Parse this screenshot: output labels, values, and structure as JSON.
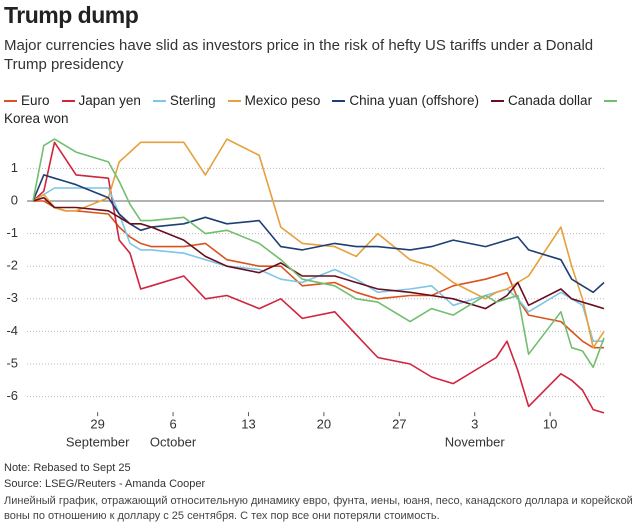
{
  "chart_data": {
    "type": "line",
    "title": "Trump dump",
    "subtitle": "Major currencies have slid as investors price in the risk of hefty US tariffs under a Donald Trump presidency",
    "note": "Note: Rebased to Sept 25",
    "source": "Source: LSEG/Reuters - Amanda Cooper",
    "description": "Линейный график, отражающий относительную динамику евро, фунта, иены, юаня, песо, канадского доллара и корейской воны по отношению к доллару с 25 сентября. С тех пор все они потеряли стоимость.",
    "x": [
      "09-23",
      "09-24",
      "09-25",
      "09-26",
      "09-27",
      "09-30",
      "10-01",
      "10-02",
      "10-03",
      "10-04",
      "10-07",
      "10-09",
      "10-11",
      "10-14",
      "10-16",
      "10-18",
      "10-21",
      "10-23",
      "10-25",
      "10-28",
      "10-30",
      "11-01",
      "11-04",
      "11-05",
      "11-06",
      "11-07",
      "11-08",
      "11-11",
      "11-12",
      "11-13",
      "11-14",
      "11-15"
    ],
    "xlim": [
      "09-23",
      "11-15"
    ],
    "xticks": [
      {
        "value": "09-29",
        "label": "29"
      },
      {
        "value": "10-06",
        "label": "6"
      },
      {
        "value": "10-13",
        "label": "13"
      },
      {
        "value": "10-20",
        "label": "20"
      },
      {
        "value": "10-27",
        "label": "27"
      },
      {
        "value": "11-03",
        "label": "3"
      },
      {
        "value": "11-10",
        "label": "10"
      }
    ],
    "x_month_labels": [
      {
        "value": "09-29",
        "label": "September"
      },
      {
        "value": "10-06",
        "label": "October"
      },
      {
        "value": "11-03",
        "label": "November"
      }
    ],
    "ylim": [
      -6.6,
      2.1
    ],
    "yticks": [
      -6,
      -5,
      -4,
      -3,
      -2,
      -1,
      0,
      1
    ],
    "grid": true,
    "series": [
      {
        "name": "Euro",
        "color": "#d9531e",
        "values": [
          0,
          0,
          -0.2,
          -0.3,
          -0.3,
          -0.4,
          -0.8,
          -1.1,
          -1.3,
          -1.4,
          -1.4,
          -1.3,
          -1.8,
          -2.0,
          -2.0,
          -2.6,
          -2.5,
          -2.8,
          -3.0,
          -2.9,
          -2.9,
          -2.6,
          -2.4,
          -2.3,
          -2.2,
          -3.0,
          -3.5,
          -3.7,
          -4.0,
          -4.3,
          -4.5,
          -4.5
        ]
      },
      {
        "name": "Japan yen",
        "color": "#d1243f",
        "values": [
          0,
          0.3,
          1.8,
          1.3,
          0.8,
          0.7,
          -1.2,
          -1.6,
          -2.7,
          -2.6,
          -2.3,
          -3.0,
          -2.9,
          -3.3,
          -3.0,
          -3.6,
          -3.4,
          -4.1,
          -4.8,
          -5.0,
          -5.4,
          -5.6,
          -5.0,
          -4.8,
          -4.3,
          -5.2,
          -6.3,
          -5.3,
          -5.5,
          -5.8,
          -6.4,
          -6.5
        ]
      },
      {
        "name": "Sterling",
        "color": "#7cc6e8",
        "values": [
          0,
          0.2,
          0.4,
          0.4,
          0.4,
          0.4,
          -0.4,
          -1.3,
          -1.5,
          -1.5,
          -1.6,
          -1.8,
          -2.0,
          -2.1,
          -2.4,
          -2.5,
          -2.1,
          -2.4,
          -2.8,
          -2.7,
          -2.6,
          -3.2,
          -2.9,
          -2.8,
          -2.7,
          -3.0,
          -3.4,
          -2.8,
          -3.0,
          -3.2,
          -4.3,
          -4.3
        ]
      },
      {
        "name": "Mexico peso",
        "color": "#e6a03c",
        "values": [
          0,
          0.2,
          -0.2,
          -0.3,
          -0.3,
          0.1,
          1.2,
          1.5,
          1.8,
          1.8,
          1.8,
          0.8,
          1.9,
          1.4,
          -0.8,
          -1.3,
          -1.4,
          -1.7,
          -1.0,
          -1.8,
          -2.0,
          -2.5,
          -3.0,
          -2.8,
          -2.7,
          -2.5,
          -2.3,
          -0.8,
          -2.0,
          -3.0,
          -4.5,
          -4.0
        ]
      },
      {
        "name": "China yuan (offshore)",
        "color": "#1d3f73",
        "values": [
          0,
          0.8,
          0.7,
          0.6,
          0.5,
          0.1,
          -0.4,
          -0.7,
          -0.9,
          -0.8,
          -0.7,
          -0.5,
          -0.7,
          -0.6,
          -1.4,
          -1.5,
          -1.3,
          -1.4,
          -1.4,
          -1.5,
          -1.4,
          -1.2,
          -1.4,
          -1.3,
          -1.2,
          -1.1,
          -1.5,
          -1.8,
          -2.4,
          -2.6,
          -2.8,
          -2.5
        ]
      },
      {
        "name": "Canada dollar",
        "color": "#6a0d1c",
        "values": [
          0,
          0.1,
          -0.2,
          -0.2,
          -0.2,
          -0.3,
          -0.5,
          -0.7,
          -0.7,
          -0.8,
          -1.2,
          -1.7,
          -2.0,
          -2.2,
          -1.9,
          -2.3,
          -2.3,
          -2.5,
          -2.7,
          -2.8,
          -2.9,
          -3.0,
          -3.3,
          -3.1,
          -2.9,
          -2.5,
          -3.2,
          -2.7,
          -3.0,
          -3.1,
          -3.2,
          -3.3
        ]
      },
      {
        "name": "Korea won",
        "color": "#72be6e",
        "values": [
          0,
          1.7,
          1.9,
          1.7,
          1.5,
          1.2,
          0.6,
          -0.1,
          -0.6,
          -0.6,
          -0.5,
          -1.0,
          -0.9,
          -1.3,
          -1.8,
          -2.4,
          -2.6,
          -3.0,
          -3.1,
          -3.7,
          -3.3,
          -3.5,
          -2.9,
          -3.1,
          -3.0,
          -2.9,
          -4.7,
          -3.4,
          -4.5,
          -4.6,
          -5.1,
          -4.2
        ]
      }
    ]
  }
}
